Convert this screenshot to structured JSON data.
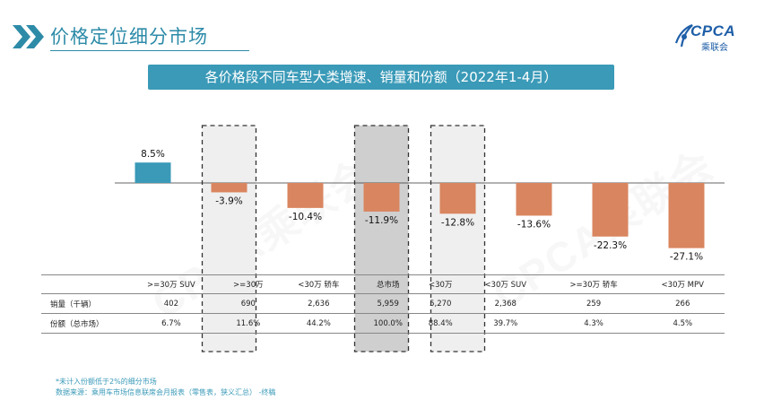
{
  "header": {
    "title": "价格定位细分市场"
  },
  "logo": {
    "name": "CPCA",
    "sub": "乘联会"
  },
  "subtitle": "各价格段不同车型大类增速、销量和份额（2022年1-4月）",
  "watermark": "CPCA乘联会",
  "colors": {
    "positive": "#3a9ab8",
    "negative": "#d9855f",
    "accent": "#2d8ba8"
  },
  "chart_data": {
    "type": "bar",
    "categories": [
      ">=30万 SUV",
      ">=30万",
      "<30万 轿车",
      "总市场",
      "<30万",
      "<30万 SUV",
      ">=30万 轿车",
      "<30万 MPV"
    ],
    "values": [
      8.5,
      -3.9,
      -10.4,
      -11.9,
      -12.8,
      -13.6,
      -22.3,
      -27.1
    ],
    "value_labels": [
      "8.5%",
      "-3.9%",
      "-10.4%",
      "-11.9%",
      "-12.8%",
      "-13.6%",
      "-22.3%",
      "-27.1%"
    ],
    "highlighted": [
      ">=30万",
      "总市场",
      "<30万"
    ],
    "title": "",
    "xlabel": "",
    "ylabel": "",
    "ylim": [
      -30,
      10
    ]
  },
  "table": {
    "headers": [
      ">=30万 SUV",
      ">=30万",
      "<30万 轿车",
      "总市场",
      "<30万",
      "<30万 SUV",
      ">=30万 轿车",
      "<30万 MPV"
    ],
    "rows": [
      {
        "label": "销量（千辆）",
        "values": [
          "402",
          "690",
          "2,636",
          "5,959",
          "5,270",
          "2,368",
          "259",
          "266"
        ]
      },
      {
        "label": "份额（总市场）",
        "values": [
          "6.7%",
          "11.6%",
          "44.2%",
          "100.0%",
          "88.4%",
          "39.7%",
          "4.3%",
          "4.5%"
        ]
      }
    ]
  },
  "footnotes": [
    "*未计入份额低于2%的细分市场",
    "数据来源：乘用车市场信息联席会月报表（零售表，狭义汇总） -终稿"
  ]
}
